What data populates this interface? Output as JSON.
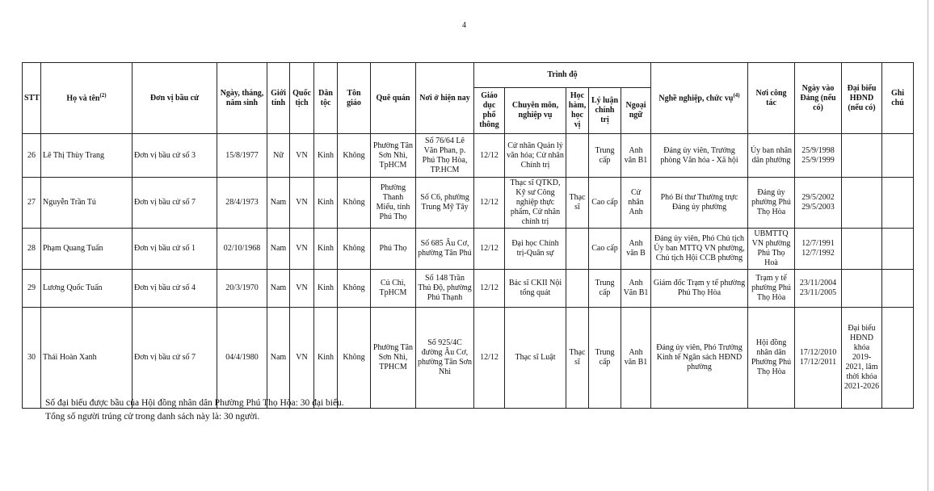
{
  "page_number": "4",
  "table": {
    "headers": {
      "stt": "STT",
      "name": "Họ và tên",
      "name_sup": "(2)",
      "unit": "Đơn vị bầu cử",
      "dob": "Ngày, tháng, năm sinh",
      "gender": "Giới tính",
      "nationality": "Quốc tịch",
      "ethnicity": "Dân tộc",
      "religion": "Tôn giáo",
      "hometown": "Quê quán",
      "residence": "Nơi ở hiện nay",
      "education_group": "Trình độ",
      "general_edu": "Giáo dục phổ thông",
      "specialty": "Chuyên môn, nghiệp vụ",
      "degree": "Học hàm, học vị",
      "political": "Lý luận chính trị",
      "language": "Ngoại ngữ",
      "occupation": "Nghề nghiệp, chức vụ",
      "occupation_sup": "(4)",
      "workplace": "Nơi công tác",
      "party_date": "Ngày vào Đảng (nếu có)",
      "delegate": "Đại biểu HĐND (nếu có)",
      "notes": "Ghi chú"
    },
    "rows": [
      {
        "stt": "26",
        "name": "Lê Thị Thùy Trang",
        "unit": "Đơn vị bầu cử số 3",
        "dob": "15/8/1977",
        "gender": "Nữ",
        "nationality": "VN",
        "ethnicity": "Kinh",
        "religion": "Không",
        "hometown": "Phường Tân Sơn Nhì, TpHCM",
        "residence": "Số 76/64 Lê Văn Phan, p. Phú Thọ Hòa, TP.HCM",
        "general_edu": "12/12",
        "specialty": "Cử nhân Quản lý văn hóa; Cử nhân Chính trị",
        "degree": "",
        "political": "Trung cấp",
        "language": "Anh văn B1",
        "occupation": "Đảng ủy viên, Trưởng phòng Văn hóa - Xã hội",
        "workplace": "Ủy ban nhân dân phường",
        "party_date": "25/9/1998",
        "party_date2": "25/9/1999",
        "delegate": "",
        "notes": ""
      },
      {
        "stt": "27",
        "name": "Nguyễn Trần Tú",
        "unit": "Đơn vị bầu cử số 7",
        "dob": "28/4/1973",
        "gender": "Nam",
        "nationality": "VN",
        "ethnicity": "Kinh",
        "religion": "Không",
        "hometown": "Phường Thanh Miếu, tỉnh Phú Thọ",
        "residence": "Số C6, phường Trung Mỹ Tây",
        "general_edu": "12/12",
        "specialty": "Thạc sĩ QTKD, Kỹ sư Công nghiệp thực phẩm, Cử nhân chính trị",
        "degree": "Thạc sĩ",
        "political": "Cao cấp",
        "language": "Cử nhân Anh",
        "occupation": "Phó Bí thư Thường trực Đảng ủy phường",
        "workplace": "Đảng ủy phường Phú Thọ Hòa",
        "party_date": "29/5/2002",
        "party_date2": "29/5/2003",
        "delegate": "",
        "notes": ""
      },
      {
        "stt": "28",
        "name": "Phạm Quang Tuấn",
        "unit": "Đơn vị bầu cử số 1",
        "dob": "02/10/1968",
        "gender": "Nam",
        "nationality": "VN",
        "ethnicity": "Kinh",
        "religion": "Không",
        "hometown": "Phú Thọ",
        "residence": "Số 685 Âu Cơ, phường Tân Phú",
        "general_edu": "12/12",
        "specialty": "Đại học Chính trị-Quân sự",
        "degree": "",
        "political": "Cao cấp",
        "language": "Anh văn B",
        "occupation": "Đảng ủy viên, Phó Chủ tịch Ủy ban MTTQ VN phường, Chủ tịch Hội CCB phường",
        "workplace": "UBMTTQ VN phường Phú Thọ Hoà",
        "party_date": "12/7/1991",
        "party_date2": "12/7/1992",
        "delegate": "",
        "notes": ""
      },
      {
        "stt": "29",
        "name": "Lương Quốc Tuấn",
        "unit": "Đơn vị bầu cử số 4",
        "dob": "20/3/1970",
        "gender": "Nam",
        "nationality": "VN",
        "ethnicity": "Kinh",
        "religion": "Không",
        "hometown": "Củ Chi, TpHCM",
        "residence": "Số 148 Trần Thủ Độ, phường Phú Thạnh",
        "general_edu": "12/12",
        "specialty": "Bác sĩ CKII Nội tổng quát",
        "degree": "",
        "political": "Trung cấp",
        "language": "Anh Văn B1",
        "occupation": "Giám đốc Trạm y tế phường Phú Thọ Hòa",
        "workplace": "Trạm y tế phường Phú Thọ Hòa",
        "party_date": "23/11/2004",
        "party_date2": "23/11/2005",
        "delegate": "",
        "notes": ""
      },
      {
        "stt": "30",
        "name": "Thái Hoàn Xanh",
        "unit": "Đơn vị bầu cử số 7",
        "dob": "04/4/1980",
        "gender": "Nam",
        "nationality": "VN",
        "ethnicity": "Kinh",
        "religion": "Không",
        "hometown": "Phường Tân Sơn Nhì, TPHCM",
        "residence": "Số 925/4C đường Âu Cơ, phường Tân Sơn Nhì",
        "general_edu": "12/12",
        "specialty": "Thạc sĩ Luật",
        "degree": "Thạc sĩ",
        "political": "Trung cấp",
        "language": "Anh văn B1",
        "occupation": "Đảng ủy viên, Phó Trưởng Kinh tế Ngân sách HĐND phường",
        "workplace": "Hội đồng nhân dân Phường Phú Thọ Hòa",
        "party_date": "17/12/2010",
        "party_date2": "17/12/2011",
        "delegate": "Đại biểu HĐND khóa 2019-2021, lâm thời khóa 2021-2026",
        "notes": ""
      }
    ]
  },
  "footer": {
    "line1": "Số đại biểu được bầu của Hội đồng nhân dân Phường Phú Thọ Hòa: 30 đại biểu.",
    "line2": "Tổng số người trúng cử trong danh sách này là: 30 người."
  }
}
